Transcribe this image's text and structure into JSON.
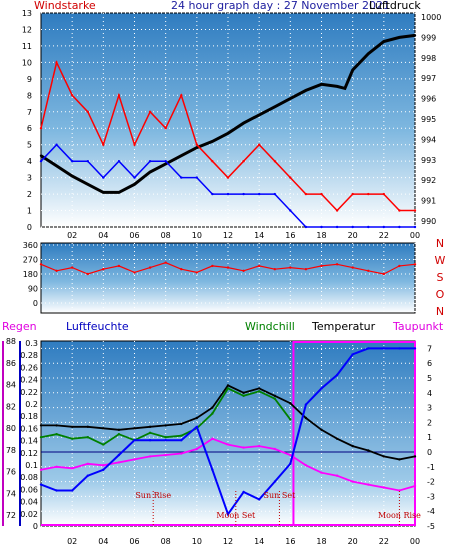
{
  "chart_data": [
    {
      "type": "line",
      "title": "24 hour graph day : 27 November 2021",
      "left_label": "Windstarke",
      "right_label": "Luftdruck",
      "x_ticks": [
        "02",
        "04",
        "06",
        "08",
        "10",
        "12",
        "14",
        "16",
        "18",
        "20",
        "22",
        "00"
      ],
      "y_left_ticks": [
        "0",
        "1",
        "2",
        "3",
        "4",
        "5",
        "6",
        "7",
        "8",
        "9",
        "10",
        "11",
        "12",
        "13"
      ],
      "y_left_range": [
        0,
        13
      ],
      "y_right_ticks": [
        "990",
        "991",
        "992",
        "993",
        "994",
        "995",
        "996",
        "997",
        "998",
        "999",
        "1000"
      ],
      "y_right_range": [
        990,
        1000
      ],
      "series": [
        {
          "color": "#000000",
          "x": [
            0,
            1,
            2,
            3,
            4,
            5,
            6,
            7,
            8,
            9,
            10,
            11,
            12,
            13,
            14,
            15,
            16,
            17,
            18,
            19,
            19.5,
            20,
            21,
            22,
            23,
            24
          ],
          "y": [
            993.2,
            992.7,
            992.2,
            991.8,
            991.4,
            991.4,
            991.8,
            992.4,
            992.8,
            993.2,
            993.6,
            993.9,
            994.3,
            994.8,
            995.2,
            995.6,
            996,
            996.4,
            996.7,
            996.6,
            996.5,
            997.4,
            998.2,
            998.8,
            999,
            999.1
          ]
        },
        {
          "color": "#ff0000",
          "x": [
            0,
            1,
            2,
            3,
            4,
            5,
            6,
            7,
            8,
            9,
            10,
            11,
            12,
            13,
            14,
            15,
            16,
            17,
            18,
            19,
            20,
            21,
            22,
            23,
            24
          ],
          "y": [
            6,
            10,
            8,
            7,
            5,
            8,
            5,
            7,
            6,
            8,
            5,
            4,
            3,
            4,
            5,
            4,
            3,
            2,
            2,
            1,
            2,
            2,
            2,
            1,
            1
          ]
        },
        {
          "color": "#0000ff",
          "x": [
            0,
            1,
            2,
            3,
            4,
            5,
            6,
            7,
            8,
            9,
            10,
            11,
            12,
            13,
            14,
            15,
            16,
            17,
            18,
            19,
            20,
            21,
            22,
            23,
            24
          ],
          "y": [
            4,
            5,
            4,
            4,
            3,
            4,
            3,
            4,
            4,
            3,
            3,
            2,
            2,
            2,
            2,
            2,
            1,
            0,
            0,
            0,
            0,
            0,
            0,
            0,
            0
          ]
        }
      ]
    },
    {
      "type": "line",
      "right_letters": [
        "N",
        "W",
        "S",
        "O",
        "N"
      ],
      "y_ticks": [
        "0",
        "90",
        "180",
        "270",
        "360"
      ],
      "y_range": [
        0,
        360
      ],
      "series": [
        {
          "color": "#ff0000",
          "x": [
            0,
            1,
            2,
            3,
            4,
            5,
            6,
            7,
            8,
            9,
            10,
            11,
            12,
            13,
            14,
            15,
            16,
            17,
            18,
            19,
            20,
            21,
            22,
            23,
            24
          ],
          "y": [
            240,
            200,
            220,
            180,
            210,
            230,
            190,
            220,
            250,
            210,
            190,
            230,
            220,
            200,
            230,
            210,
            220,
            210,
            230,
            240,
            220,
            200,
            180,
            230,
            240
          ]
        }
      ]
    },
    {
      "type": "line",
      "labels": {
        "rain": "Regen",
        "humidity": "Luftfeuchte",
        "windchill": "Windchill",
        "temperature": "Temperatur",
        "dewpoint": "Taupunkt"
      },
      "y_humidity_ticks": [
        "72",
        "74",
        "76",
        "78",
        "80",
        "82",
        "84",
        "86",
        "88"
      ],
      "y_humidity_range": [
        71,
        88
      ],
      "y_rain_ticks": [
        "0",
        "0.02",
        "0.04",
        "0.06",
        "0.08",
        "0.1",
        "0.12",
        "0.14",
        "0.16",
        "0.18",
        "0.2",
        "0.22",
        "0.24",
        "0.26",
        "0.28",
        "0.3"
      ],
      "y_rain_range": [
        0,
        0.3
      ],
      "y_temp_ticks": [
        "-5",
        "-4",
        "-3",
        "-2",
        "-1",
        "0",
        "1",
        "2",
        "3",
        "4",
        "5",
        "6",
        "7"
      ],
      "y_temp_range": [
        -5,
        7.5
      ],
      "annotations": [
        "Sun Rise",
        "Moon Set",
        "Sun Set",
        "Moon Rise"
      ],
      "x_ticks": [
        "02",
        "04",
        "06",
        "08",
        "10",
        "12",
        "14",
        "16",
        "18",
        "20",
        "22",
        "00"
      ],
      "series": [
        {
          "color": "#000000",
          "x": [
            0,
            1,
            2,
            3,
            4,
            5,
            6,
            7,
            8,
            9,
            10,
            11,
            12,
            13,
            14,
            15,
            16,
            17,
            18,
            19,
            20,
            21,
            22,
            23,
            24
          ],
          "y": [
            1.8,
            1.8,
            1.7,
            1.7,
            1.6,
            1.5,
            1.6,
            1.7,
            1.8,
            1.9,
            2.3,
            3.0,
            4.5,
            4.0,
            4.3,
            3.8,
            3.3,
            2.3,
            1.5,
            0.9,
            0.4,
            0.1,
            -0.3,
            -0.5,
            -0.3
          ]
        },
        {
          "color": "#008000",
          "x": [
            0,
            1,
            2,
            3,
            4,
            5,
            6,
            7,
            8,
            9,
            10,
            11,
            12,
            13,
            14,
            15,
            16
          ],
          "y": [
            1.0,
            1.2,
            0.9,
            1.0,
            0.5,
            1.2,
            0.8,
            1.3,
            1.0,
            1.1,
            1.6,
            2.6,
            4.3,
            3.8,
            4.1,
            3.6,
            2.2
          ]
        },
        {
          "color": "#ff00ff",
          "x": [
            0,
            1,
            2,
            3,
            4,
            5,
            6,
            7,
            8,
            9,
            10,
            11,
            12,
            13,
            14,
            15,
            16,
            17,
            18,
            19,
            20,
            21,
            22,
            23,
            24
          ],
          "y": [
            -1.2,
            -1.0,
            -1.1,
            -0.8,
            -0.9,
            -0.7,
            -0.5,
            -0.3,
            -0.2,
            -0.1,
            0.2,
            0.9,
            0.5,
            0.3,
            0.4,
            0.2,
            -0.2,
            -0.9,
            -1.4,
            -1.6,
            -2.0,
            -2.2,
            -2.4,
            -2.6,
            -2.3
          ]
        },
        {
          "color": "#0000ff",
          "x": [
            0,
            1,
            2,
            3,
            4,
            5,
            6,
            7,
            8,
            9,
            10,
            11,
            12,
            13,
            14,
            15,
            16,
            17,
            18,
            19,
            20,
            21,
            22,
            23,
            24
          ],
          "y": [
            -2.2,
            -2.6,
            -2.6,
            -1.6,
            -1.2,
            -0.2,
            0.8,
            0.8,
            0.8,
            0.8,
            1.7,
            -1.2,
            -4.2,
            -2.7,
            -3.2,
            -2.0,
            -0.8,
            3.2,
            4.3,
            5.2,
            6.6,
            7.0,
            7.0,
            7.0,
            7.0
          ]
        }
      ]
    }
  ]
}
